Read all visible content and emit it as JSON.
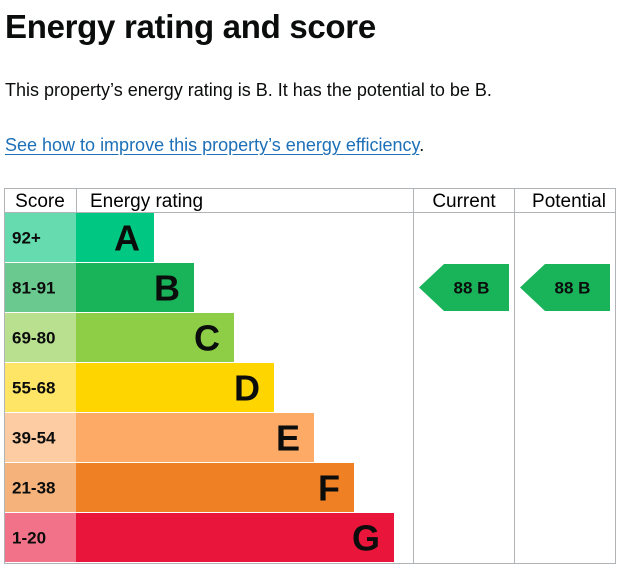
{
  "page": {
    "title": "Energy rating and score",
    "summary": "This property’s energy rating is B. It has the potential to be B.",
    "link_text": "See how to improve this property’s energy efficiency",
    "link_suffix": "."
  },
  "chart_data": {
    "type": "bar",
    "headers": {
      "score": "Score",
      "rating": "Energy rating",
      "current": "Current",
      "potential": "Potential"
    },
    "bands": [
      {
        "letter": "A",
        "range": "92+",
        "color": "#00c781",
        "range_bg": "#66dbaf"
      },
      {
        "letter": "B",
        "range": "81-91",
        "color": "#19b459",
        "range_bg": "#6ac98f"
      },
      {
        "letter": "C",
        "range": "69-80",
        "color": "#8dce46",
        "range_bg": "#b8e08f"
      },
      {
        "letter": "D",
        "range": "55-68",
        "color": "#ffd500",
        "range_bg": "#ffe566"
      },
      {
        "letter": "E",
        "range": "39-54",
        "color": "#fcaa65",
        "range_bg": "#fdcca3"
      },
      {
        "letter": "F",
        "range": "21-38",
        "color": "#ef8023",
        "range_bg": "#f5b37b"
      },
      {
        "letter": "G",
        "range": "1-20",
        "color": "#e9153b",
        "range_bg": "#f27389"
      }
    ],
    "current": {
      "score": 88,
      "letter": "B",
      "label": "88 B",
      "color": "#19b459"
    },
    "potential": {
      "score": 88,
      "letter": "B",
      "label": "88 B",
      "color": "#19b459"
    }
  }
}
